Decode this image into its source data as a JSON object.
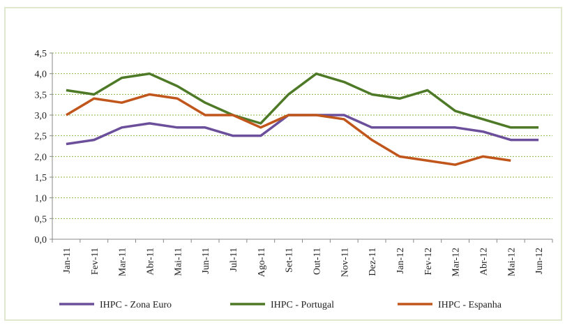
{
  "chart_data": {
    "type": "line",
    "categories": [
      "Jan-11",
      "Fev-11",
      "Mar-11",
      "Abr-11",
      "Mai-11",
      "Jun-11",
      "Jul-11",
      "Ago-11",
      "Set-11",
      "Out-11",
      "Nov-11",
      "Dez-11",
      "Jan-12",
      "Fev-12",
      "Mar-12",
      "Abr-12",
      "Mai-12",
      "Jun-12"
    ],
    "series": [
      {
        "name": "IHPC - Zona Euro",
        "color": "#6b4f9b",
        "values": [
          2.3,
          2.4,
          2.7,
          2.8,
          2.7,
          2.7,
          2.5,
          2.5,
          3.0,
          3.0,
          3.0,
          2.7,
          2.7,
          2.7,
          2.7,
          2.6,
          2.4,
          2.4
        ]
      },
      {
        "name": "IHPC - Portugal",
        "color": "#4e7a27",
        "values": [
          3.6,
          3.5,
          3.9,
          4.0,
          3.7,
          3.3,
          3.0,
          2.8,
          3.5,
          4.0,
          3.8,
          3.5,
          3.4,
          3.6,
          3.1,
          2.9,
          2.7,
          2.7
        ]
      },
      {
        "name": "IHPC - Espanha",
        "color": "#c0561b",
        "values": [
          3.0,
          3.4,
          3.3,
          3.5,
          3.4,
          3.0,
          3.0,
          2.7,
          3.0,
          3.0,
          2.9,
          2.4,
          2.0,
          1.9,
          1.8,
          2.0,
          1.9,
          null
        ]
      }
    ],
    "ylim": [
      0,
      4.5
    ],
    "yticks": [
      {
        "value": 0,
        "label": "0,0"
      },
      {
        "value": 0.5,
        "label": "0,5"
      },
      {
        "value": 1,
        "label": "1,0"
      },
      {
        "value": 1.5,
        "label": "1,5"
      },
      {
        "value": 2,
        "label": "2,0"
      },
      {
        "value": 2.5,
        "label": "2,5"
      },
      {
        "value": 3,
        "label": "3,0"
      },
      {
        "value": 3.5,
        "label": "3,5"
      },
      {
        "value": 4,
        "label": "4,0"
      },
      {
        "value": 4.5,
        "label": "4,5"
      }
    ],
    "grid": true,
    "legend": "bottom"
  }
}
